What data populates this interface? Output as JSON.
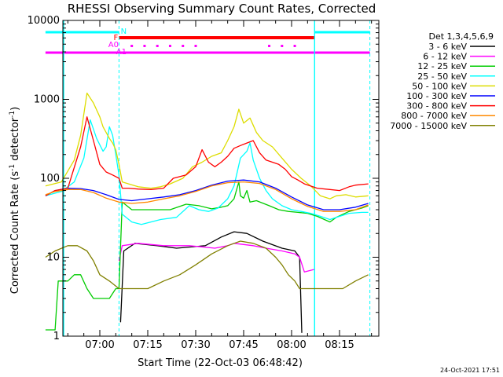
{
  "chart_data": {
    "type": "line",
    "title": "RHESSI Observing Summary Count Rates, Corrected",
    "xlabel": "Start Time (22-Oct-03 06:48:42)",
    "ylabel": "Corrected Count Rate (s",
    "ylabel_sup": "-1",
    "ylabel_tail": " detector",
    "ylabel_tail_sup": "-1",
    "ylabel_close": ")",
    "y_scale": "log",
    "ylim": [
      1,
      10000
    ],
    "xlim_minutes": [
      -11.3,
      29.2
    ],
    "y_ticks": [
      {
        "value": 1,
        "label": "1"
      },
      {
        "value": 10,
        "label": "10"
      },
      {
        "value": 100,
        "label": "100"
      },
      {
        "value": 1000,
        "label": "1000"
      },
      {
        "value": 10000,
        "label": "10000"
      }
    ],
    "x_ticks": [
      {
        "minute": 0,
        "label": "07:00"
      },
      {
        "minute": 15,
        "label": "07:15"
      },
      {
        "minute": 30,
        "label": "07:30"
      },
      {
        "minute": 45,
        "label": "07:45"
      },
      {
        "minute": 60,
        "label": "08:00"
      },
      {
        "minute": 75,
        "label": "08:15"
      }
    ],
    "legend_title": "Det 1,3,4,5,6,9",
    "series": [
      {
        "name": "3 - 6 keV",
        "color": "#000000",
        "points": [
          [
            -9,
            null
          ],
          [
            6.5,
            1.5
          ],
          [
            7.5,
            12
          ],
          [
            11,
            15
          ],
          [
            18,
            14
          ],
          [
            24,
            13
          ],
          [
            33,
            14
          ],
          [
            38,
            18
          ],
          [
            42,
            21
          ],
          [
            46,
            20
          ],
          [
            51,
            16
          ],
          [
            57,
            13
          ],
          [
            61,
            12
          ],
          [
            62.5,
            10
          ],
          [
            63.2,
            1.1
          ]
        ]
      },
      {
        "name": "6 - 12 keV",
        "color": "#ff00ff",
        "points": [
          [
            -9,
            null
          ],
          [
            6,
            9
          ],
          [
            7,
            14
          ],
          [
            12,
            15
          ],
          [
            20,
            14
          ],
          [
            28,
            14
          ],
          [
            36,
            13
          ],
          [
            40,
            14
          ],
          [
            42,
            15
          ],
          [
            48,
            14
          ],
          [
            52,
            13
          ],
          [
            57,
            12
          ],
          [
            61,
            11
          ],
          [
            62.5,
            10
          ],
          [
            64,
            6.5
          ],
          [
            67,
            7
          ]
        ]
      },
      {
        "name": "12 - 25 keV",
        "color": "#00cc00",
        "points": [
          [
            -17,
            1.2
          ],
          [
            -14,
            1.2
          ],
          [
            -13,
            5
          ],
          [
            -10,
            5
          ],
          [
            -8,
            6
          ],
          [
            -6,
            6
          ],
          [
            -4,
            4
          ],
          [
            -2,
            3
          ],
          [
            0,
            3
          ],
          [
            1,
            3
          ],
          [
            3,
            3
          ],
          [
            5,
            4
          ],
          [
            6,
            4
          ],
          [
            7,
            50
          ],
          [
            10,
            40
          ],
          [
            16,
            40
          ],
          [
            22,
            40
          ],
          [
            27,
            47
          ],
          [
            31,
            45
          ],
          [
            35,
            41
          ],
          [
            38,
            43
          ],
          [
            40,
            45
          ],
          [
            42,
            55
          ],
          [
            43.5,
            90
          ],
          [
            44,
            60
          ],
          [
            45,
            56
          ],
          [
            46,
            70
          ],
          [
            47,
            50
          ],
          [
            49,
            52
          ],
          [
            53,
            45
          ],
          [
            56,
            40
          ],
          [
            59,
            38
          ],
          [
            62,
            37
          ],
          [
            65,
            36
          ],
          [
            68,
            33
          ],
          [
            72,
            28
          ],
          [
            74,
            32
          ],
          [
            78,
            38
          ],
          [
            82,
            42
          ],
          [
            84,
            45
          ]
        ]
      },
      {
        "name": "25 - 50 keV",
        "color": "#00ffff",
        "points": [
          [
            -17,
            60
          ],
          [
            -12,
            68
          ],
          [
            -8,
            90
          ],
          [
            -5,
            180
          ],
          [
            -3,
            550
          ],
          [
            -1,
            320
          ],
          [
            1,
            220
          ],
          [
            2,
            250
          ],
          [
            3,
            450
          ],
          [
            4,
            350
          ],
          [
            5,
            200
          ],
          [
            6,
            110
          ],
          [
            7,
            35
          ],
          [
            10,
            28
          ],
          [
            13,
            26
          ],
          [
            19,
            30
          ],
          [
            24,
            32
          ],
          [
            28,
            45
          ],
          [
            31,
            40
          ],
          [
            34,
            38
          ],
          [
            37,
            42
          ],
          [
            40,
            55
          ],
          [
            42,
            80
          ],
          [
            44,
            180
          ],
          [
            46,
            220
          ],
          [
            47,
            280
          ],
          [
            48,
            170
          ],
          [
            50,
            100
          ],
          [
            52,
            70
          ],
          [
            54,
            55
          ],
          [
            57,
            45
          ],
          [
            60,
            40
          ],
          [
            63,
            38
          ],
          [
            66,
            36
          ],
          [
            69,
            33
          ],
          [
            72,
            30
          ],
          [
            74,
            32
          ],
          [
            78,
            36
          ],
          [
            82,
            37
          ],
          [
            84,
            37
          ]
        ]
      },
      {
        "name": "50 - 100 keV",
        "color": "#dddd00",
        "points": [
          [
            -17,
            80
          ],
          [
            -12,
            90
          ],
          [
            -8,
            170
          ],
          [
            -6,
            350
          ],
          [
            -4,
            1200
          ],
          [
            -2,
            900
          ],
          [
            0,
            600
          ],
          [
            1,
            450
          ],
          [
            3,
            320
          ],
          [
            4,
            280
          ],
          [
            5,
            230
          ],
          [
            6,
            150
          ],
          [
            7,
            90
          ],
          [
            9,
            85
          ],
          [
            12,
            78
          ],
          [
            16,
            75
          ],
          [
            19,
            78
          ],
          [
            22,
            85
          ],
          [
            26,
            100
          ],
          [
            29,
            140
          ],
          [
            32,
            160
          ],
          [
            35,
            190
          ],
          [
            38,
            210
          ],
          [
            40,
            300
          ],
          [
            42,
            450
          ],
          [
            43.5,
            750
          ],
          [
            45,
            500
          ],
          [
            47,
            580
          ],
          [
            49,
            380
          ],
          [
            51,
            300
          ],
          [
            54,
            250
          ],
          [
            57,
            180
          ],
          [
            60,
            130
          ],
          [
            63,
            100
          ],
          [
            66,
            80
          ],
          [
            69,
            60
          ],
          [
            72,
            55
          ],
          [
            74,
            60
          ],
          [
            77,
            62
          ],
          [
            80,
            58
          ],
          [
            84,
            60
          ]
        ]
      },
      {
        "name": "100 - 300 keV",
        "color": "#0000ff",
        "points": [
          [
            -17,
            60
          ],
          [
            -14,
            70
          ],
          [
            -10,
            75
          ],
          [
            -6,
            74
          ],
          [
            -2,
            70
          ],
          [
            2,
            62
          ],
          [
            6,
            54
          ],
          [
            10,
            52
          ],
          [
            15,
            55
          ],
          [
            20,
            58
          ],
          [
            25,
            62
          ],
          [
            30,
            70
          ],
          [
            35,
            82
          ],
          [
            40,
            92
          ],
          [
            45,
            95
          ],
          [
            50,
            90
          ],
          [
            55,
            75
          ],
          [
            60,
            58
          ],
          [
            65,
            46
          ],
          [
            70,
            40
          ],
          [
            75,
            40
          ],
          [
            80,
            43
          ],
          [
            84,
            48
          ]
        ]
      },
      {
        "name": "300 - 800 keV",
        "color": "#ff0000",
        "points": [
          [
            -17,
            60
          ],
          [
            -14,
            70
          ],
          [
            -10,
            75
          ],
          [
            -6,
            250
          ],
          [
            -4,
            600
          ],
          [
            -2,
            300
          ],
          [
            0,
            150
          ],
          [
            2,
            120
          ],
          [
            4,
            110
          ],
          [
            6,
            100
          ],
          [
            7,
            75
          ],
          [
            9,
            75
          ],
          [
            12,
            73
          ],
          [
            16,
            72
          ],
          [
            20,
            75
          ],
          [
            23,
            100
          ],
          [
            27,
            110
          ],
          [
            30,
            140
          ],
          [
            32,
            230
          ],
          [
            34,
            160
          ],
          [
            36,
            140
          ],
          [
            38,
            160
          ],
          [
            40,
            190
          ],
          [
            42,
            240
          ],
          [
            44,
            260
          ],
          [
            46,
            280
          ],
          [
            48,
            300
          ],
          [
            50,
            210
          ],
          [
            52,
            170
          ],
          [
            54,
            160
          ],
          [
            56,
            150
          ],
          [
            58,
            130
          ],
          [
            60,
            105
          ],
          [
            62,
            95
          ],
          [
            64,
            85
          ],
          [
            68,
            75
          ],
          [
            72,
            72
          ],
          [
            75,
            70
          ],
          [
            78,
            78
          ],
          [
            80,
            82
          ],
          [
            84,
            85
          ]
        ]
      },
      {
        "name": "800 - 7000 keV",
        "color": "#ff8800",
        "points": [
          [
            -17,
            62
          ],
          [
            -14,
            68
          ],
          [
            -10,
            72
          ],
          [
            -6,
            72
          ],
          [
            -2,
            66
          ],
          [
            2,
            56
          ],
          [
            6,
            50
          ],
          [
            10,
            48
          ],
          [
            15,
            50
          ],
          [
            20,
            55
          ],
          [
            25,
            60
          ],
          [
            30,
            68
          ],
          [
            35,
            80
          ],
          [
            40,
            88
          ],
          [
            45,
            90
          ],
          [
            50,
            86
          ],
          [
            55,
            72
          ],
          [
            60,
            55
          ],
          [
            65,
            44
          ],
          [
            70,
            38
          ],
          [
            75,
            38
          ],
          [
            80,
            40
          ],
          [
            84,
            46
          ]
        ]
      },
      {
        "name": "7000 - 15000 keV",
        "color": "#808000",
        "points": [
          [
            -17,
            10
          ],
          [
            -14,
            12
          ],
          [
            -10,
            14
          ],
          [
            -7,
            14
          ],
          [
            -4,
            12
          ],
          [
            -2,
            9
          ],
          [
            0,
            6
          ],
          [
            3,
            5
          ],
          [
            6,
            4
          ],
          [
            7,
            4
          ],
          [
            11,
            4
          ],
          [
            15,
            4
          ],
          [
            20,
            5
          ],
          [
            25,
            6
          ],
          [
            30,
            8
          ],
          [
            35,
            11
          ],
          [
            40,
            14
          ],
          [
            44,
            16
          ],
          [
            48,
            15
          ],
          [
            52,
            13
          ],
          [
            55,
            10
          ],
          [
            57,
            8
          ],
          [
            59,
            6
          ],
          [
            61,
            5
          ],
          [
            62.5,
            4
          ],
          [
            64,
            4
          ],
          [
            68,
            4
          ],
          [
            72,
            4
          ],
          [
            76,
            4
          ],
          [
            80,
            5
          ],
          [
            84,
            6
          ]
        ]
      }
    ],
    "attenuator_labels": [
      {
        "text": "N",
        "color": "#00ffff"
      },
      {
        "text": "F",
        "color": "#ff0000"
      },
      {
        "text": "A0",
        "color": "#ff00ff"
      },
      {
        "text": "A1",
        "color": "#ff00ff"
      }
    ],
    "timestamp": "24-Oct-2021 17:51"
  }
}
